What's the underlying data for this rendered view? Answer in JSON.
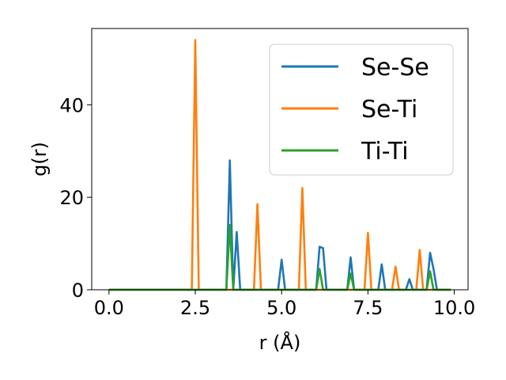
{
  "chart_data": {
    "type": "line",
    "title": "",
    "xlabel": "r (Å)",
    "ylabel": "g(r)",
    "xlim": [
      -0.5,
      10.4
    ],
    "ylim": [
      0,
      56.5
    ],
    "xticks": [
      0.0,
      2.5,
      5.0,
      7.5,
      10.0
    ],
    "xtick_labels": [
      "0.0",
      "2.5",
      "5.0",
      "7.5",
      "10.0"
    ],
    "yticks": [
      0,
      20,
      40
    ],
    "ytick_labels": [
      "0",
      "20",
      "40"
    ],
    "grid": false,
    "legend_position": "top-right",
    "series": [
      {
        "name": "Se-Se",
        "color": "#1f77b4",
        "x": [
          0.0,
          3.4,
          3.5,
          3.6,
          3.7,
          3.8,
          4.9,
          5.0,
          5.1,
          6.0,
          6.1,
          6.2,
          6.3,
          6.9,
          7.0,
          7.1,
          7.8,
          7.9,
          8.0,
          8.6,
          8.7,
          8.8,
          9.2,
          9.3,
          9.4,
          9.5,
          9.9
        ],
        "y": [
          0,
          0,
          28,
          0,
          12.5,
          0,
          0,
          6.5,
          0,
          0,
          9.3,
          9.0,
          0,
          0,
          7.0,
          0,
          0,
          5.5,
          0,
          0,
          2.3,
          0,
          0,
          8.0,
          4.5,
          0,
          0
        ]
      },
      {
        "name": "Se-Ti",
        "color": "#ff7f0e",
        "x": [
          0.0,
          2.4,
          2.5,
          2.6,
          4.2,
          4.3,
          4.4,
          5.5,
          5.6,
          5.7,
          7.4,
          7.5,
          7.6,
          8.2,
          8.3,
          8.4,
          8.9,
          9.0,
          9.1,
          9.9
        ],
        "y": [
          0,
          0,
          54,
          0,
          0,
          18.5,
          0,
          0,
          22,
          0,
          0,
          12.3,
          0,
          0,
          5.0,
          0,
          0,
          8.6,
          0,
          0
        ]
      },
      {
        "name": "Ti-Ti",
        "color": "#2ca02c",
        "x": [
          0.0,
          3.4,
          3.5,
          3.6,
          6.0,
          6.1,
          6.2,
          6.9,
          7.0,
          7.1,
          9.2,
          9.3,
          9.4,
          9.9
        ],
        "y": [
          0,
          0,
          14,
          0,
          0,
          4.5,
          0,
          0,
          3.5,
          0,
          0,
          4.0,
          0,
          0
        ]
      }
    ]
  }
}
